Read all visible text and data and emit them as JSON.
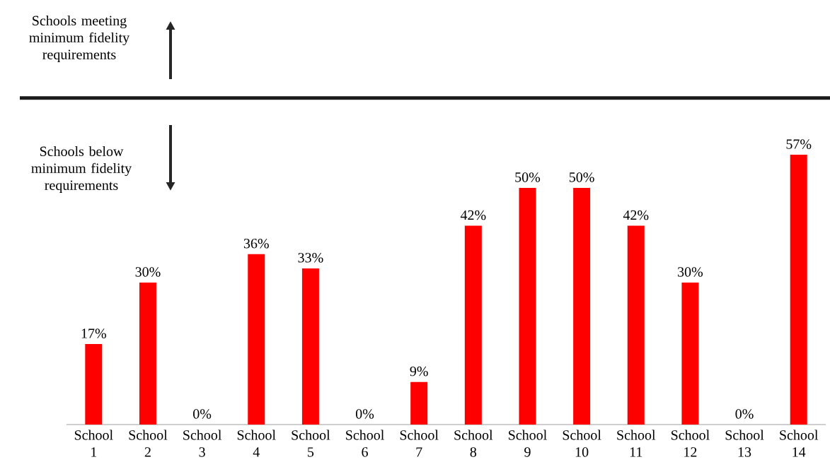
{
  "chart_data": {
    "type": "bar",
    "categories": [
      "School 1",
      "School 2",
      "School 3",
      "School 4",
      "School 5",
      "School 6",
      "School 7",
      "School 8",
      "School 9",
      "School 10",
      "School 11",
      "School 12",
      "School 13",
      "School 14"
    ],
    "values": [
      17,
      30,
      0,
      36,
      33,
      0,
      9,
      42,
      50,
      50,
      42,
      30,
      0,
      57
    ],
    "value_labels": [
      "17%",
      "30%",
      "0%",
      "36%",
      "33%",
      "0%",
      "9%",
      "42%",
      "50%",
      "50%",
      "42%",
      "30%",
      "0%",
      "57%"
    ],
    "color": "#ff0000",
    "tick_labels": "x",
    "ref_lines": [
      {
        "axis": "y",
        "value": 69,
        "color": "#1a1a1a"
      }
    ],
    "annotations": [
      "Schools meeting minimum fidelity requirements",
      "Schools below minimum fidelity requirements"
    ]
  }
}
